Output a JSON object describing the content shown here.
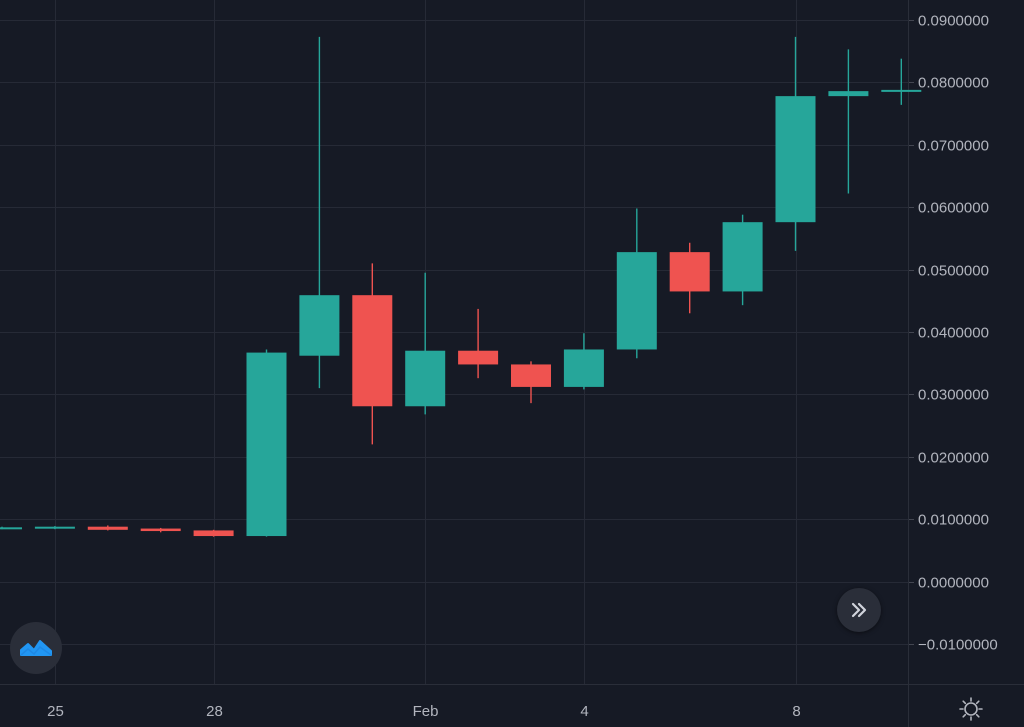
{
  "chart_data": {
    "type": "candlestick",
    "x_tick_labels": [
      "25",
      "28",
      "Feb",
      "4",
      "8"
    ],
    "y_tick_labels": [
      "0.0900000",
      "0.0800000",
      "0.0700000",
      "0.0600000",
      "0.0500000",
      "0.0400000",
      "0.0300000",
      "0.0200000",
      "0.0100000",
      "0.0000000",
      "−0.0100000"
    ],
    "y_ticks": [
      0.09,
      0.08,
      0.07,
      0.06,
      0.05,
      0.04,
      0.03,
      0.02,
      0.01,
      0.0,
      -0.01
    ],
    "ylim": [
      -0.0165,
      0.0925
    ],
    "x_tick_dates": [
      "Jan 25",
      "Jan 28",
      "Feb 1",
      "Feb 4",
      "Feb 8"
    ],
    "grid": true,
    "colors": {
      "up": "#26a69a",
      "down": "#ef5350",
      "background": "#161a25",
      "grid": "#262a36",
      "text": "#b2b5be"
    },
    "candles": [
      {
        "date": "Jan 24",
        "open": 0.0086,
        "high": 0.0088,
        "low": 0.0084,
        "close": 0.0087
      },
      {
        "date": "Jan 25",
        "open": 0.0086,
        "high": 0.0089,
        "low": 0.0084,
        "close": 0.0088
      },
      {
        "date": "Jan 26",
        "open": 0.0088,
        "high": 0.009,
        "low": 0.0082,
        "close": 0.0083
      },
      {
        "date": "Jan 27",
        "open": 0.0085,
        "high": 0.0086,
        "low": 0.0079,
        "close": 0.0081
      },
      {
        "date": "Jan 28",
        "open": 0.0082,
        "high": 0.0083,
        "low": 0.0072,
        "close": 0.0073
      },
      {
        "date": "Jan 29",
        "open": 0.0073,
        "high": 0.0372,
        "low": 0.0072,
        "close": 0.0367
      },
      {
        "date": "Jan 30",
        "open": 0.0362,
        "high": 0.0873,
        "low": 0.031,
        "close": 0.0459
      },
      {
        "date": "Jan 31",
        "open": 0.0459,
        "high": 0.051,
        "low": 0.022,
        "close": 0.0281
      },
      {
        "date": "Feb 1",
        "open": 0.0281,
        "high": 0.0495,
        "low": 0.0268,
        "close": 0.037
      },
      {
        "date": "Feb 2",
        "open": 0.037,
        "high": 0.0437,
        "low": 0.0326,
        "close": 0.0348
      },
      {
        "date": "Feb 3",
        "open": 0.0348,
        "high": 0.0353,
        "low": 0.0286,
        "close": 0.0312
      },
      {
        "date": "Feb 4",
        "open": 0.0312,
        "high": 0.0398,
        "low": 0.0308,
        "close": 0.0372
      },
      {
        "date": "Feb 5",
        "open": 0.0372,
        "high": 0.0598,
        "low": 0.0358,
        "close": 0.0528
      },
      {
        "date": "Feb 6",
        "open": 0.0528,
        "high": 0.0543,
        "low": 0.043,
        "close": 0.0465
      },
      {
        "date": "Feb 7",
        "open": 0.0465,
        "high": 0.0588,
        "low": 0.0443,
        "close": 0.0576
      },
      {
        "date": "Feb 8",
        "open": 0.0576,
        "high": 0.0873,
        "low": 0.053,
        "close": 0.0778
      },
      {
        "date": "Feb 9",
        "open": 0.0778,
        "high": 0.0853,
        "low": 0.0622,
        "close": 0.0786
      },
      {
        "date": "Feb 10",
        "open": 0.0786,
        "high": 0.0838,
        "low": 0.0764,
        "close": 0.0788
      }
    ]
  },
  "icons": {
    "scroll_right": "double-chevron-right-icon",
    "logo": "tradingview-logo-icon",
    "settings": "gear-icon"
  }
}
